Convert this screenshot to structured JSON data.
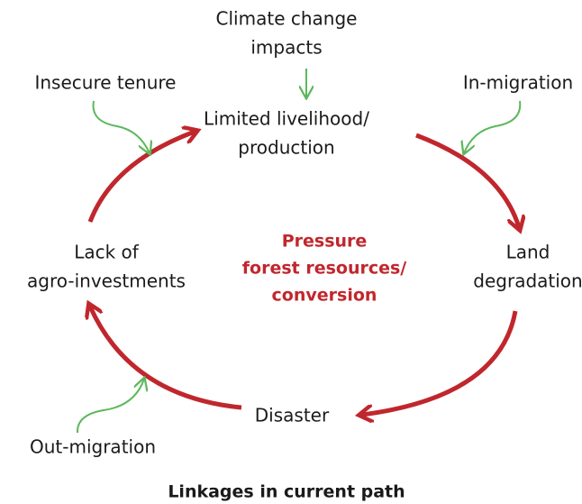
{
  "nodes": [
    {
      "lines": [
        "Limited livelihood/",
        "production"
      ]
    },
    {
      "lines": [
        "Land",
        "degradation"
      ]
    },
    {
      "lines": [
        "Disaster"
      ]
    },
    {
      "lines": [
        "Lack of",
        "agro-investments"
      ]
    }
  ],
  "factors": [
    {
      "lines": [
        "Climate change",
        "impacts"
      ]
    },
    {
      "lines": [
        "Insecure tenure"
      ]
    },
    {
      "lines": [
        "In-migration"
      ]
    },
    {
      "lines": [
        "Out-migration"
      ]
    }
  ],
  "center": {
    "lines": [
      "Pressure",
      "forest resources/",
      "conversion"
    ]
  },
  "caption": "Linkages in current path"
}
